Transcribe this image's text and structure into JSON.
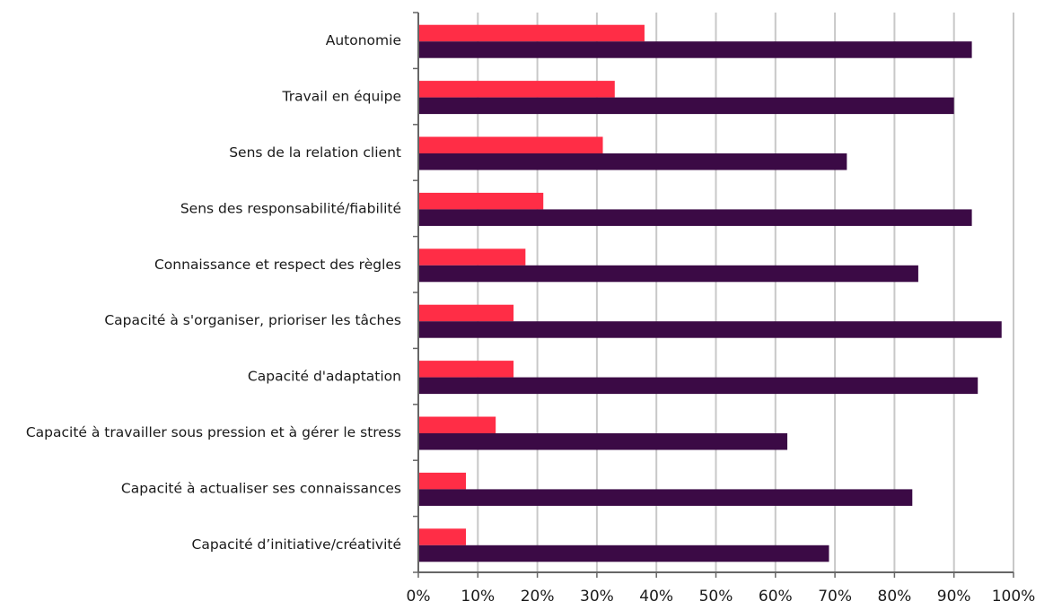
{
  "chart_data": {
    "type": "bar",
    "orientation": "horizontal",
    "categories": [
      "Autonomie",
      "Travail en équipe",
      "Sens de la relation client",
      "Sens des responsabilité/fiabilité",
      "Connaissance et respect des règles",
      "Capacité à s'organiser, prioriser les tâches",
      "Capacité d'adaptation",
      "Capacité à travailler sous pression et à gérer le stress",
      "Capacité à actualiser ses connaissances",
      "Capacité d’initiative/créativité"
    ],
    "series": [
      {
        "color": "#ff2d46",
        "values": [
          38,
          33,
          31,
          21,
          18,
          16,
          16,
          13,
          8,
          8
        ]
      },
      {
        "color": "#3b0a45",
        "values": [
          93,
          90,
          72,
          93,
          84,
          98,
          94,
          62,
          83,
          69
        ]
      }
    ],
    "xticks": [
      "0%",
      "10%",
      "20%",
      "30%",
      "40%",
      "50%",
      "60%",
      "70%",
      "80%",
      "90%",
      "100%"
    ],
    "xlim": [
      0,
      100
    ],
    "unit": "%",
    "grid": true,
    "legend": "none",
    "title": "",
    "xlabel": "",
    "ylabel": ""
  }
}
